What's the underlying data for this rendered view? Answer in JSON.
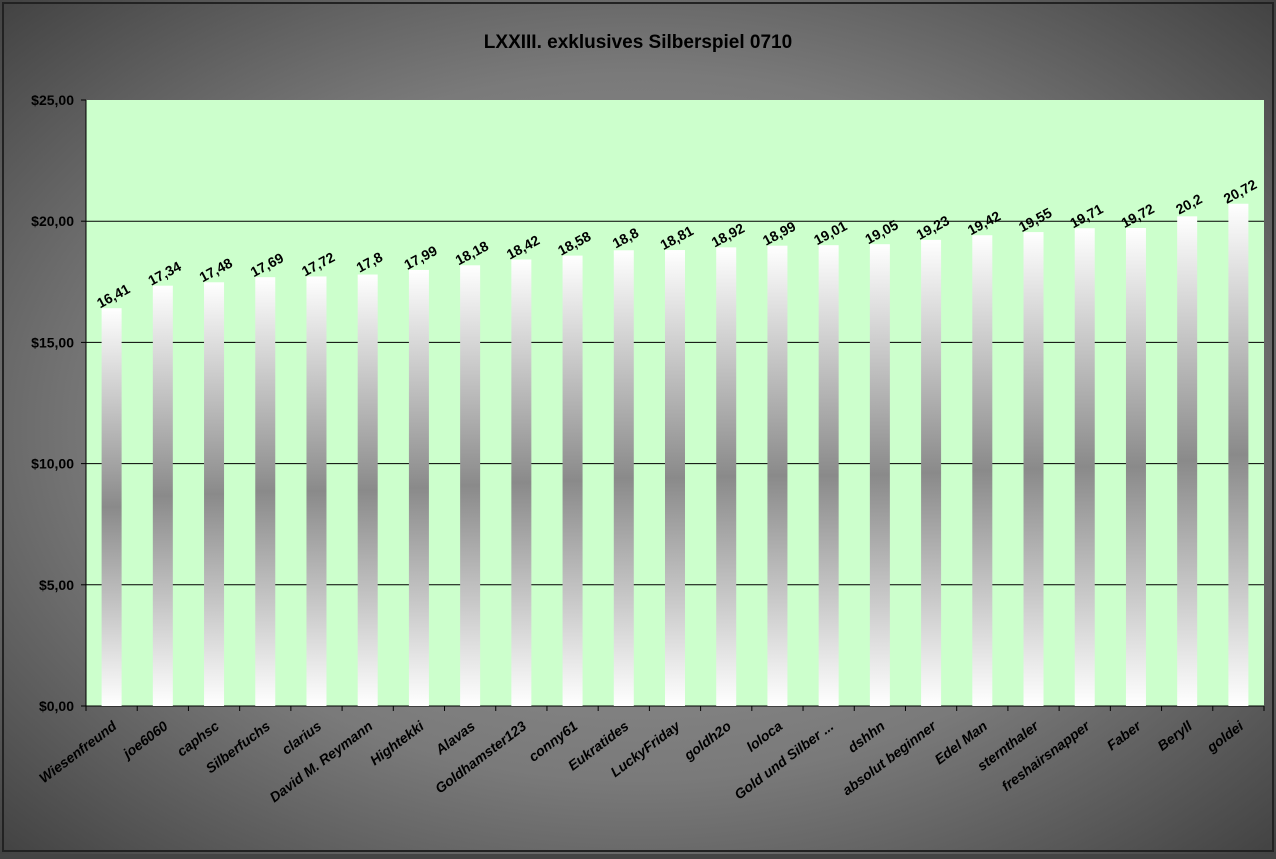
{
  "chart_data": {
    "type": "bar",
    "title": "LXXIII. exklusives Silberspiel 0710",
    "xlabel": "",
    "ylabel": "",
    "categories": [
      "Wiesenfreund",
      "joe6060",
      "caphsc",
      "Silberfuchs",
      "clarius",
      "David M. Reymann",
      "Hightekki",
      "Alavas",
      "Goldhamster123",
      "conny61",
      "Eukratides",
      "LuckyFriday",
      "goldh2o",
      "loloca",
      "Gold und Silber ...",
      "dshhn",
      "absolut beginner",
      "Edel Man",
      "sternthaler",
      "freshairsnapper",
      "Faber",
      "Beryll",
      "goldei"
    ],
    "values": [
      16.41,
      17.34,
      17.48,
      17.69,
      17.72,
      17.8,
      17.99,
      18.18,
      18.42,
      18.58,
      18.8,
      18.81,
      18.92,
      18.99,
      19.01,
      19.05,
      19.23,
      19.42,
      19.55,
      19.71,
      19.72,
      20.2,
      20.72
    ],
    "value_labels": [
      "16,41",
      "17,34",
      "17,48",
      "17,69",
      "17,72",
      "17,8",
      "17,99",
      "18,18",
      "18,42",
      "18,58",
      "18,8",
      "18,81",
      "18,92",
      "18,99",
      "19,01",
      "19,05",
      "19,23",
      "19,42",
      "19,55",
      "19,71",
      "19,72",
      "20,2",
      "20,72"
    ],
    "ylim": [
      0,
      25
    ],
    "yticks": [
      0,
      5,
      10,
      15,
      20,
      25
    ],
    "ytick_labels": [
      "$0,00",
      "$5,00",
      "$10,00",
      "$15,00",
      "$20,00",
      "$25,00"
    ],
    "grid": true,
    "legend": "none",
    "colors": {
      "plot_background": "#ccffcc",
      "bar_edge": "#ffffff",
      "bar_center": "#8a8a8a",
      "frame_outer": "#3c3c3c",
      "frame_inner": "#8e8e8e",
      "gridline": "#000000",
      "text": "#000000"
    }
  }
}
